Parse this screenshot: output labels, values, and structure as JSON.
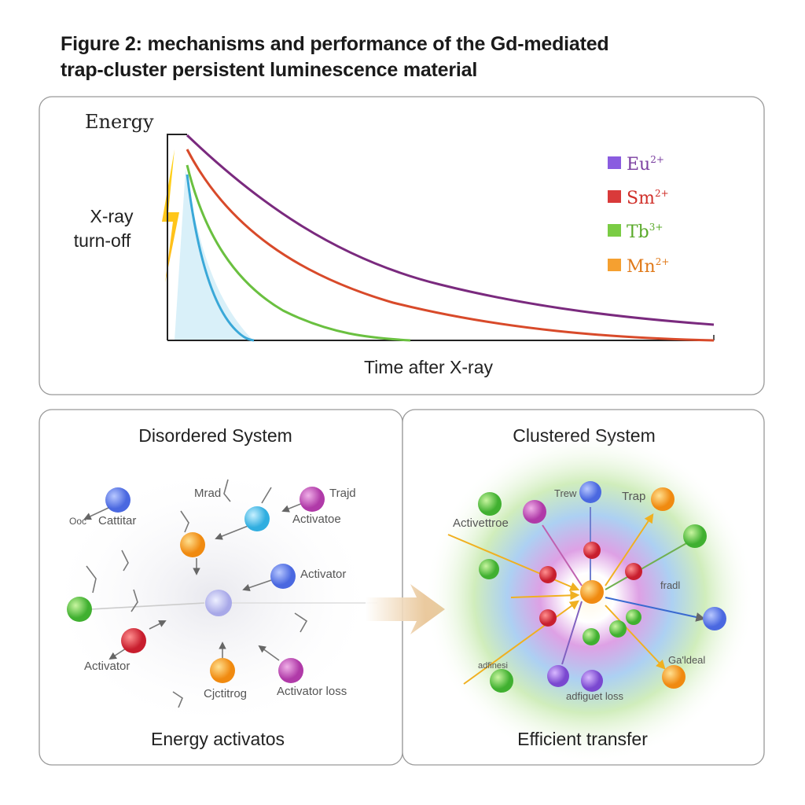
{
  "title": {
    "line1": "Figure 2: mechanisms and performance of the Gd-mediated",
    "line2": "trap-cluster persistent luminescence material"
  },
  "decay_panel": {
    "y_label": "Energy",
    "x_label": "Time after X-ray",
    "annotation_line1": "X-ray",
    "annotation_line2": "turn-off",
    "legend": [
      {
        "ion": "Eu",
        "charge": "2+",
        "color": "#7b3fa0",
        "swatch": "#8a5ce0"
      },
      {
        "ion": "Sm",
        "charge": "2+",
        "color": "#d0302a",
        "swatch": "#d93a3a"
      },
      {
        "ion": "Tb",
        "charge": "3+",
        "color": "#5aaa2a",
        "swatch": "#7acc44"
      },
      {
        "ion": "Mn",
        "charge": "2+",
        "color": "#e07a1a",
        "swatch": "#f5a030"
      }
    ]
  },
  "disordered_panel": {
    "title": "Disordered System",
    "caption": "Energy activatos",
    "labels": [
      "Ooc",
      "Cattitar",
      "Mrad",
      "Trajd",
      "Activatoe",
      "Activator",
      "Activator",
      "Cjctitrog",
      "Activator loss"
    ]
  },
  "clustered_panel": {
    "title": "Clustered System",
    "caption": "Efficient transfer",
    "labels": [
      "Trew",
      "Trap",
      "Activettroe",
      "fradl",
      "Ga'ldeal",
      "adfinesi",
      "adfiguet loss"
    ]
  }
}
